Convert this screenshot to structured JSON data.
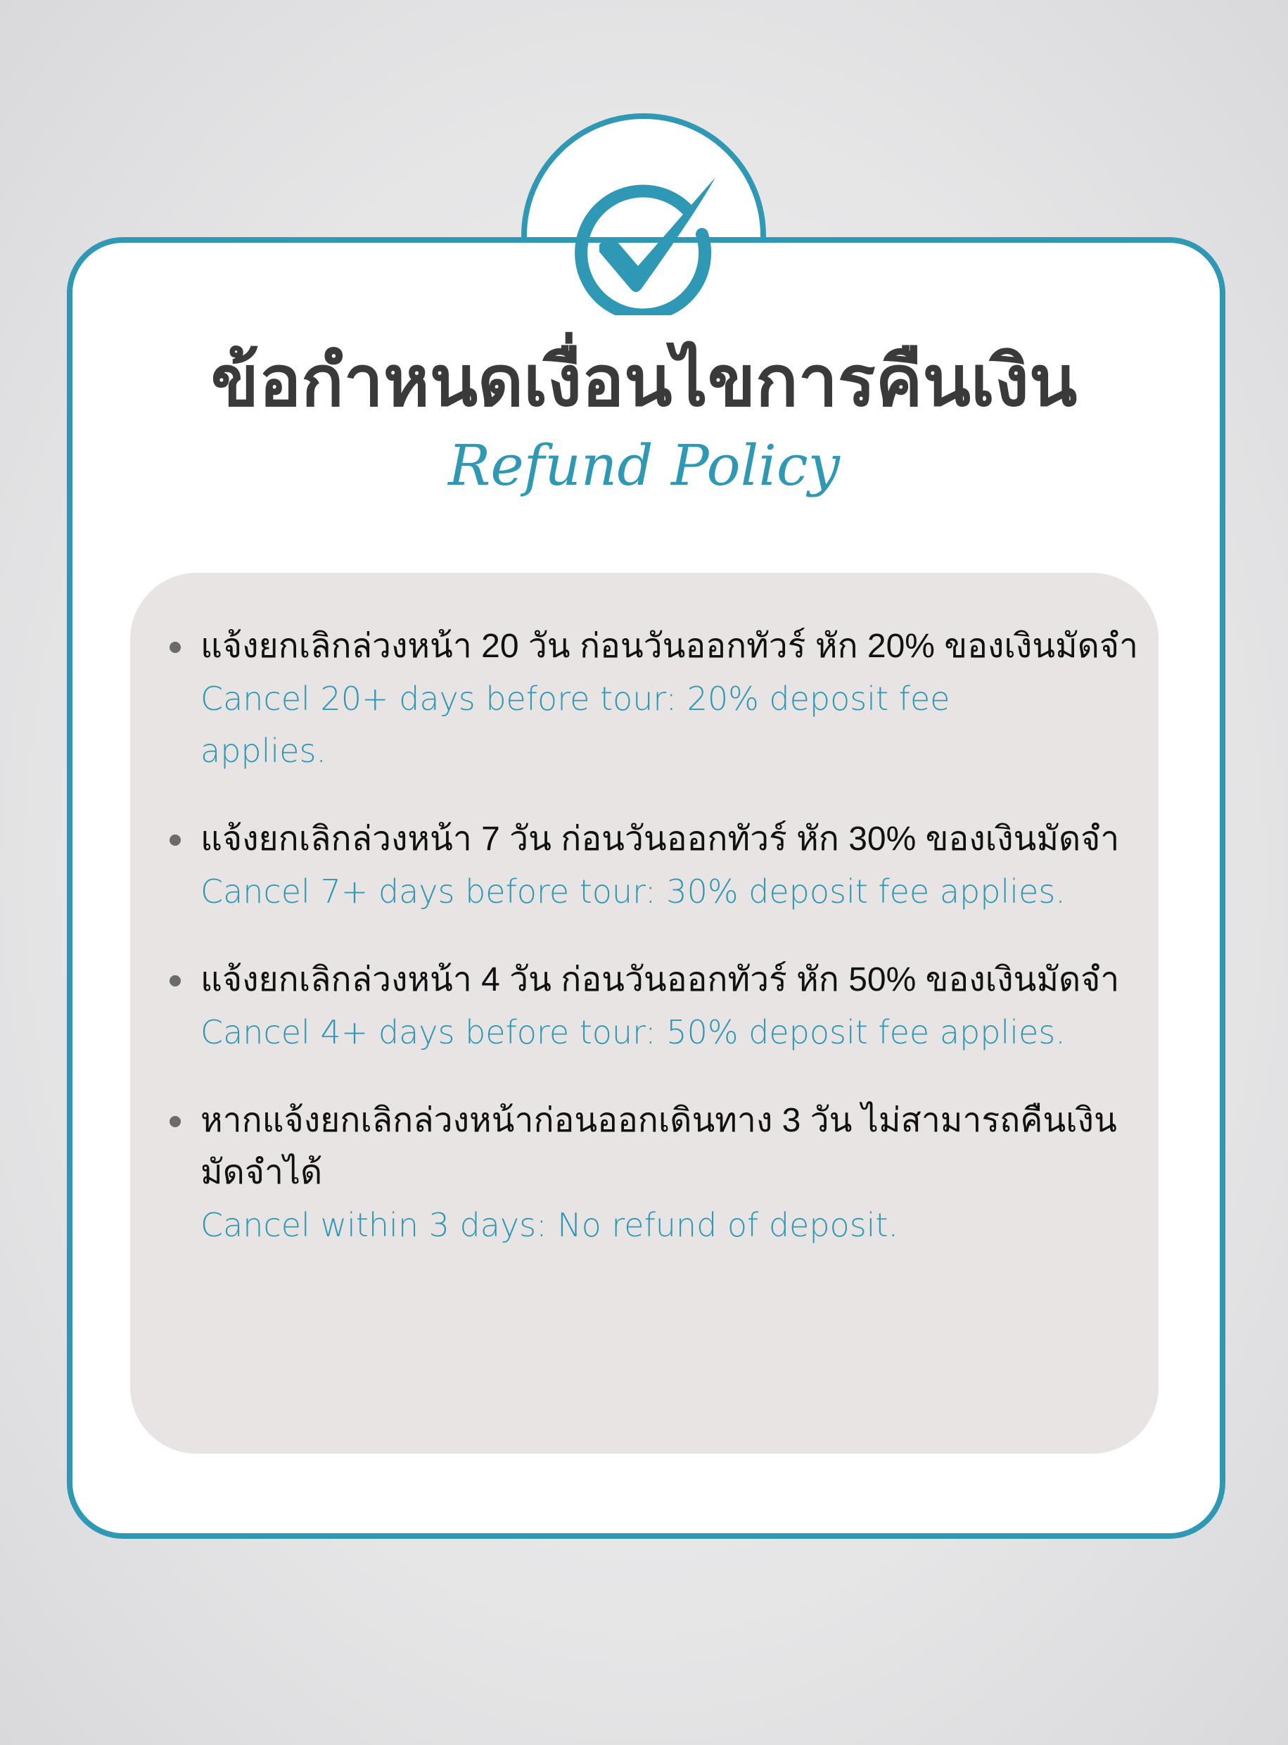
{
  "colors": {
    "accent": "#2f98b4",
    "panel": "#e7e4e3",
    "title": "#3a3a3a"
  },
  "header": {
    "icon": "check-circle-icon",
    "title_th": "ข้อกำหนดเงื่อนไขการคืนเงิน",
    "title_en": "Refund Policy"
  },
  "items": [
    {
      "th": "แจ้งยกเลิกล่วงหน้า 20 วัน ก่อนวันออกทัวร์ หัก 20% ของเงินมัดจำ",
      "en": "Cancel 20+ days before tour: 20% deposit fee applies."
    },
    {
      "th": "แจ้งยกเลิกล่วงหน้า 7 วัน ก่อนวันออกทัวร์ หัก 30% ของเงินมัดจำ",
      "en": "Cancel 7+ days before tour: 30% deposit fee applies."
    },
    {
      "th": "แจ้งยกเลิกล่วงหน้า 4 วัน ก่อนวันออกทัวร์ หัก 50% ของเงินมัดจำ",
      "en": "Cancel 4+ days before tour: 50% deposit fee applies."
    },
    {
      "th": "หากแจ้งยกเลิกล่วงหน้าก่อนออกเดินทาง 3 วัน ไม่สามารถคืนเงินมัดจำได้",
      "en": "Cancel within 3 days: No refund of deposit."
    }
  ]
}
